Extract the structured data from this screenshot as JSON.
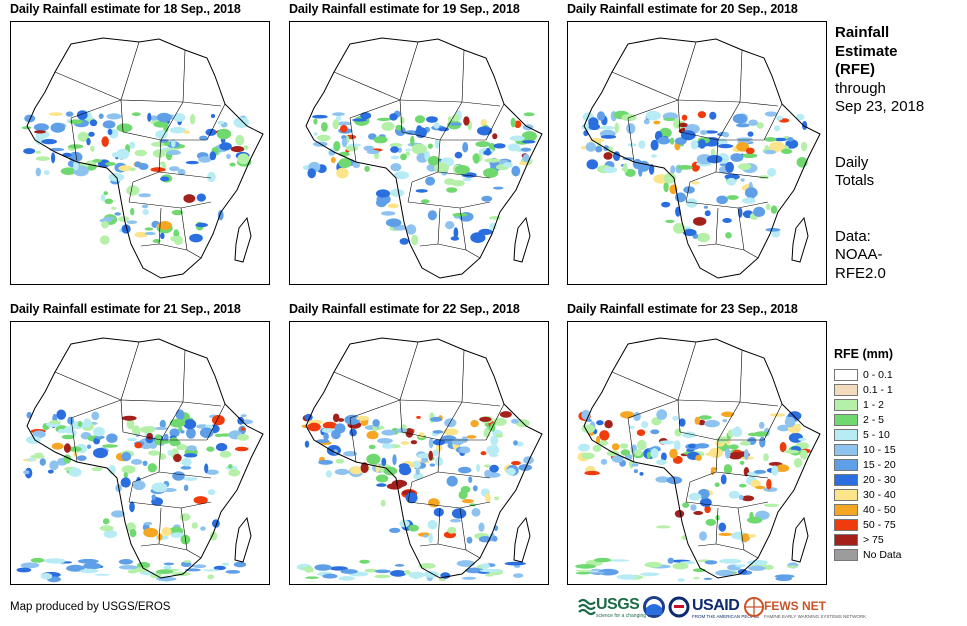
{
  "panels": [
    {
      "title": "Daily Rainfall estimate for 18 Sep., 2018"
    },
    {
      "title": "Daily Rainfall estimate for 19 Sep., 2018"
    },
    {
      "title": "Daily Rainfall estimate for 20 Sep., 2018"
    },
    {
      "title": "Daily Rainfall estimate for 21 Sep., 2018"
    },
    {
      "title": "Daily Rainfall estimate for 22 Sep., 2018"
    },
    {
      "title": "Daily Rainfall estimate for 23 Sep., 2018"
    }
  ],
  "side": {
    "title_line1": "Rainfall",
    "title_line2": "Estimate",
    "title_line3": "(RFE)",
    "through_line1": "through",
    "through_line2": "Sep 23, 2018",
    "totals_line1": "Daily",
    "totals_line2": "Totals",
    "data_line1": "Data:",
    "data_line2": "NOAA-",
    "data_line3": "RFE2.0"
  },
  "legend": {
    "title": "RFE (mm)",
    "items": [
      {
        "label": "0 - 0.1",
        "color": "#ffffff"
      },
      {
        "label": "0.1 - 1",
        "color": "#f2dcbd"
      },
      {
        "label": "1 - 2",
        "color": "#b5f0a8"
      },
      {
        "label": "2 - 5",
        "color": "#6fd86f"
      },
      {
        "label": "5 - 10",
        "color": "#b8ecf4"
      },
      {
        "label": "10 - 15",
        "color": "#8fc3ef"
      },
      {
        "label": "15 - 20",
        "color": "#5f9fe8"
      },
      {
        "label": "20 - 30",
        "color": "#2a6ee0"
      },
      {
        "label": "30 - 40",
        "color": "#fce48a"
      },
      {
        "label": "40 - 50",
        "color": "#f5a623"
      },
      {
        "label": "50 - 75",
        "color": "#f03c0c"
      },
      {
        "label": "> 75",
        "color": "#a3201b"
      },
      {
        "label": "No Data",
        "color": "#9c9c9c"
      }
    ]
  },
  "credit": "Map produced by USGS/EROS",
  "logos": {
    "usgs": "USGS",
    "usgs_tagline": "science for a changing world",
    "usaid": "USAID",
    "usaid_tagline": "FROM THE AMERICAN PEOPLE",
    "fews": "FEWS NET",
    "fews_tagline": "FAMINE EARLY WARNING SYSTEMS NETWORK"
  }
}
